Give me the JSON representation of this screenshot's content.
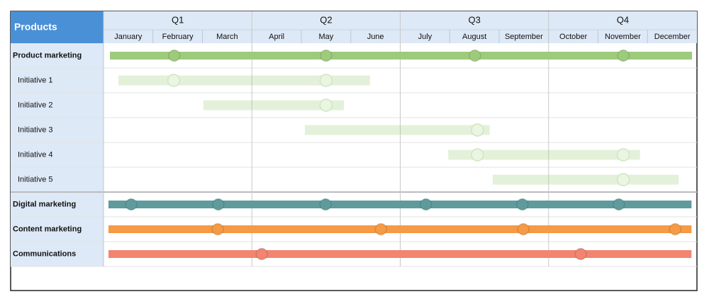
{
  "header": {
    "title": "Products",
    "quarters": [
      "Q1",
      "Q2",
      "Q3",
      "Q4"
    ],
    "months": [
      "January",
      "February",
      "March",
      "April",
      "May",
      "June",
      "July",
      "August",
      "September",
      "October",
      "November",
      "December"
    ]
  },
  "groups": [
    {
      "label": "Product marketing",
      "color": "#9dcb7b",
      "start": 0.13,
      "end": 11.9,
      "milestones": [
        1.43,
        4.5,
        7.51,
        10.51
      ],
      "items": [
        {
          "label": "Initiative 1",
          "start": 0.3,
          "end": 5.39,
          "milestones": [
            1.42,
            4.5
          ]
        },
        {
          "label": "Initiative 2",
          "start": 2.02,
          "end": 4.86,
          "milestones": [
            4.5
          ]
        },
        {
          "label": "Initiative 3",
          "start": 4.07,
          "end": 7.81,
          "milestones": [
            7.56
          ]
        },
        {
          "label": "Initiative 4",
          "start": 6.97,
          "end": 10.85,
          "milestones": [
            7.56,
            10.51
          ]
        },
        {
          "label": "Initiative 5",
          "start": 7.87,
          "end": 11.63,
          "milestones": [
            10.51
          ]
        }
      ]
    },
    {
      "label": "Digital marketing",
      "color": "#5f9b9d",
      "start": 0.1,
      "end": 11.89,
      "milestones": [
        0.56,
        2.32,
        4.49,
        6.52,
        8.47,
        10.42
      ],
      "items": []
    },
    {
      "label": "Content marketing",
      "color": "#f59a45",
      "start": 0.1,
      "end": 11.89,
      "milestones": [
        2.31,
        5.61,
        8.49,
        11.56
      ],
      "items": []
    },
    {
      "label": "Communications",
      "color": "#f28470",
      "start": 0.1,
      "end": 11.89,
      "milestones": [
        3.2,
        9.65
      ],
      "items": []
    }
  ]
}
